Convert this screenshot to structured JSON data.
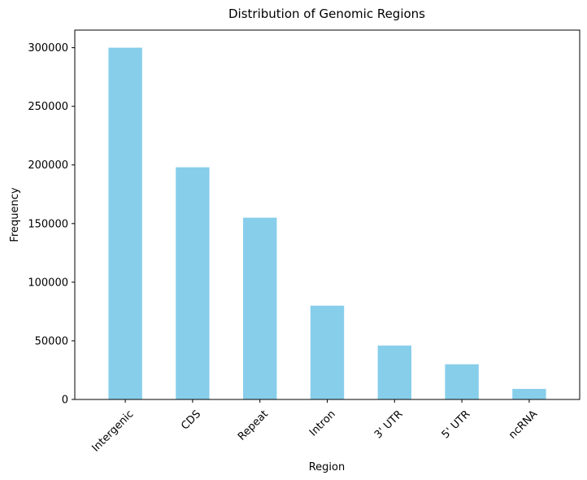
{
  "chart_data": {
    "type": "bar",
    "title": "Distribution of Genomic Regions",
    "xlabel": "Region",
    "ylabel": "Frequency",
    "categories": [
      "Intergenic",
      "CDS",
      "Repeat",
      "Intron",
      "3' UTR",
      "5' UTR",
      "ncRNA"
    ],
    "values": [
      300000,
      198000,
      155000,
      80000,
      46000,
      30000,
      9000
    ],
    "ylim": [
      0,
      315000
    ],
    "yticks": [
      0,
      50000,
      100000,
      150000,
      200000,
      250000,
      300000
    ],
    "ytick_labels": [
      "0",
      "50000",
      "100000",
      "150000",
      "200000",
      "250000",
      "300000"
    ],
    "bar_color": "#87ceeb",
    "grid": false,
    "legend": false,
    "x_tick_rotation_deg": 45
  }
}
